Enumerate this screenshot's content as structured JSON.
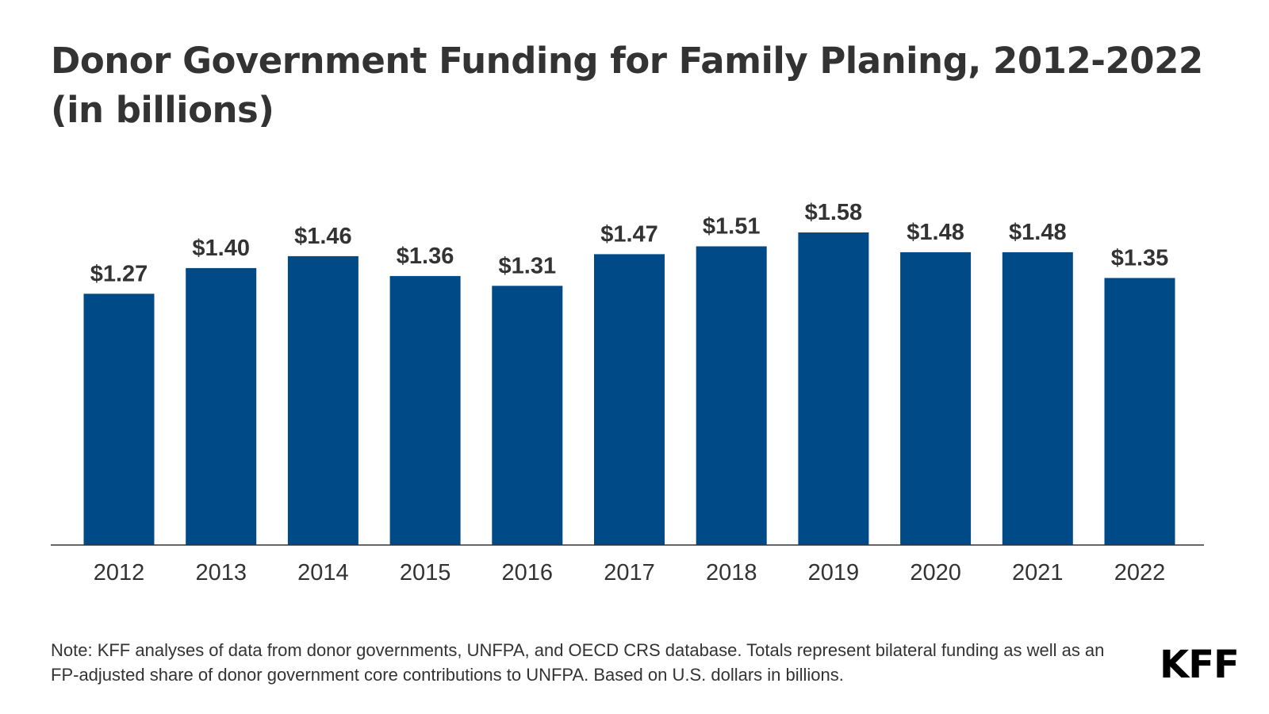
{
  "header": {
    "title": "Donor Government Funding for Family Planing, 2012-2022 (in billions)"
  },
  "chart_data": {
    "type": "bar",
    "title": "Donor Government Funding for Family Planing, 2012-2022 (in billions)",
    "categories": [
      "2012",
      "2013",
      "2014",
      "2015",
      "2016",
      "2017",
      "2018",
      "2019",
      "2020",
      "2021",
      "2022"
    ],
    "values": [
      1.27,
      1.4,
      1.46,
      1.36,
      1.31,
      1.47,
      1.51,
      1.58,
      1.48,
      1.48,
      1.35
    ],
    "value_labels": [
      "$1.27",
      "$1.40",
      "$1.46",
      "$1.36",
      "$1.31",
      "$1.47",
      "$1.51",
      "$1.58",
      "$1.48",
      "$1.48",
      "$1.35"
    ],
    "xlabel": "",
    "ylabel": "",
    "ylim": [
      0,
      1.58
    ],
    "grid": false,
    "legend": "none",
    "bar_color": "#004a87",
    "axis_color": "#333333"
  },
  "footer": {
    "note": "Note:  KFF analyses of data from donor governments, UNFPA, and OECD CRS database. Totals represent bilateral funding as well as an FP-adjusted share of donor government core contributions to UNFPA. Based on U.S. dollars in billions.",
    "logo_text": "KFF"
  }
}
